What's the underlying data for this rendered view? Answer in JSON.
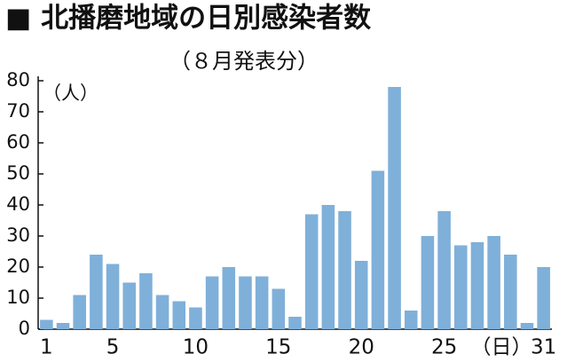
{
  "chart_data": {
    "type": "bar",
    "title": "■ 北播磨地域の日別感染者数",
    "subtitle": "（８月発表分）",
    "y_label": "（人）",
    "x_label": "（日）",
    "categories": [
      "1",
      null,
      null,
      null,
      "5",
      null,
      null,
      null,
      null,
      "10",
      null,
      null,
      null,
      null,
      "15",
      null,
      null,
      null,
      null,
      "20",
      null,
      null,
      null,
      null,
      "25",
      null,
      null,
      null,
      null,
      null,
      "31"
    ],
    "values": [
      3,
      2,
      11,
      24,
      21,
      15,
      18,
      11,
      9,
      7,
      17,
      20,
      17,
      17,
      13,
      4,
      37,
      40,
      38,
      22,
      51,
      78,
      6,
      30,
      38,
      27,
      28,
      30,
      24,
      2,
      20
    ],
    "color": "#7fb0d9",
    "ylim": [
      0,
      80
    ],
    "yticks": [
      0,
      10,
      20,
      30,
      40,
      50,
      60,
      70,
      80
    ],
    "grid": false
  }
}
